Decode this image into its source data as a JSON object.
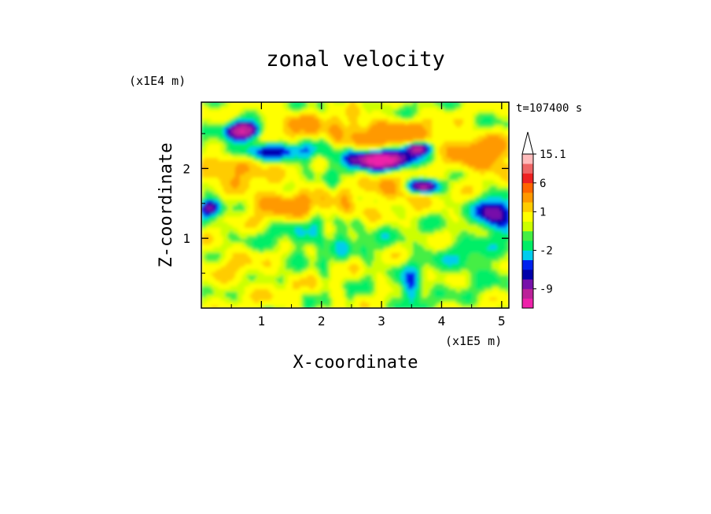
{
  "chart_data": {
    "type": "heatmap",
    "title": "zonal velocity",
    "time_label": "t=107400 s",
    "xlabel": "X-coordinate",
    "ylabel": "Z-coordinate",
    "x_multiplier": "(x1E5 m)",
    "y_multiplier": "(x1E4 m)",
    "xlim": [
      0,
      5.12
    ],
    "ylim": [
      0,
      2.95
    ],
    "x_ticks": [
      1,
      2,
      3,
      4,
      5
    ],
    "y_ticks": [
      1,
      2
    ],
    "x_tick_labels": [
      "1",
      "2",
      "3",
      "4",
      "5"
    ],
    "y_tick_labels": [
      "1",
      "2"
    ],
    "colorbar": {
      "levels": [
        -12,
        -9,
        -6,
        -4,
        -3,
        -2,
        -1,
        0,
        0.5,
        1,
        2,
        3,
        6,
        9,
        12,
        15.1
      ],
      "tick_labels": [
        "15.1",
        "6",
        "1",
        "-2",
        "-9"
      ],
      "tick_values": [
        15.1,
        6,
        1,
        -2,
        -9
      ],
      "colors": [
        "#ee22aa",
        "#bb2299",
        "#7711aa",
        "#0000aa",
        "#0022ee",
        "#00ccee",
        "#00ee66",
        "#44ee44",
        "#ccff00",
        "#ffff00",
        "#ffcc00",
        "#ff9900",
        "#ff6600",
        "#ee2222",
        "#ee6666",
        "#ffbbbb"
      ],
      "extend": "max"
    }
  }
}
